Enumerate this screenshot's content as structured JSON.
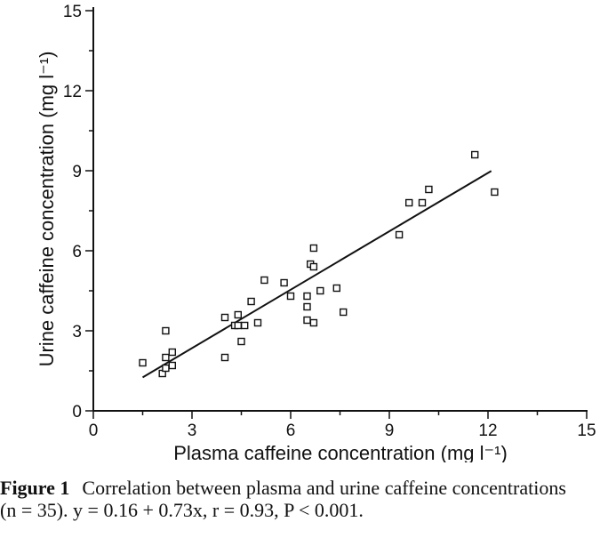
{
  "chart_data": {
    "type": "scatter",
    "xlabel": "Plasma caffeine concentration (mg l⁻¹)",
    "ylabel": "Urine caffeine concentration (mg l⁻¹)",
    "xlim": [
      0,
      15
    ],
    "ylim": [
      0,
      15
    ],
    "xticks": [
      0,
      3,
      6,
      9,
      12,
      15
    ],
    "yticks": [
      0,
      3,
      6,
      9,
      12,
      15
    ],
    "grid": false,
    "marker": "open-square",
    "points": [
      {
        "x": 1.5,
        "y": 1.8
      },
      {
        "x": 2.1,
        "y": 1.4
      },
      {
        "x": 2.2,
        "y": 1.6
      },
      {
        "x": 2.2,
        "y": 2.0
      },
      {
        "x": 2.2,
        "y": 3.0
      },
      {
        "x": 2.4,
        "y": 1.7
      },
      {
        "x": 2.4,
        "y": 2.2
      },
      {
        "x": 4.0,
        "y": 2.0
      },
      {
        "x": 4.0,
        "y": 3.5
      },
      {
        "x": 4.3,
        "y": 3.2
      },
      {
        "x": 4.4,
        "y": 3.6
      },
      {
        "x": 4.4,
        "y": 3.2
      },
      {
        "x": 4.5,
        "y": 2.6
      },
      {
        "x": 4.6,
        "y": 3.2
      },
      {
        "x": 4.8,
        "y": 4.1
      },
      {
        "x": 5.0,
        "y": 3.3
      },
      {
        "x": 5.2,
        "y": 4.9
      },
      {
        "x": 5.8,
        "y": 4.8
      },
      {
        "x": 6.0,
        "y": 4.3
      },
      {
        "x": 6.5,
        "y": 4.3
      },
      {
        "x": 6.5,
        "y": 3.9
      },
      {
        "x": 6.5,
        "y": 3.4
      },
      {
        "x": 6.6,
        "y": 5.5
      },
      {
        "x": 6.7,
        "y": 5.4
      },
      {
        "x": 6.7,
        "y": 6.1
      },
      {
        "x": 6.7,
        "y": 3.3
      },
      {
        "x": 6.9,
        "y": 4.5
      },
      {
        "x": 7.4,
        "y": 4.6
      },
      {
        "x": 7.6,
        "y": 3.7
      },
      {
        "x": 9.3,
        "y": 6.6
      },
      {
        "x": 9.6,
        "y": 7.8
      },
      {
        "x": 10.0,
        "y": 7.8
      },
      {
        "x": 10.2,
        "y": 8.3
      },
      {
        "x": 11.6,
        "y": 9.6
      },
      {
        "x": 12.2,
        "y": 8.2
      }
    ],
    "fit_line": {
      "intercept": 0.16,
      "slope": 0.73,
      "x_range": [
        1.5,
        12.1
      ]
    }
  },
  "caption": {
    "label": "Figure 1",
    "text": "Correlation between plasma and urine caffeine concentrations (n = 35). y = 0.16 + 0.73x, r = 0.93, P < 0.001."
  }
}
